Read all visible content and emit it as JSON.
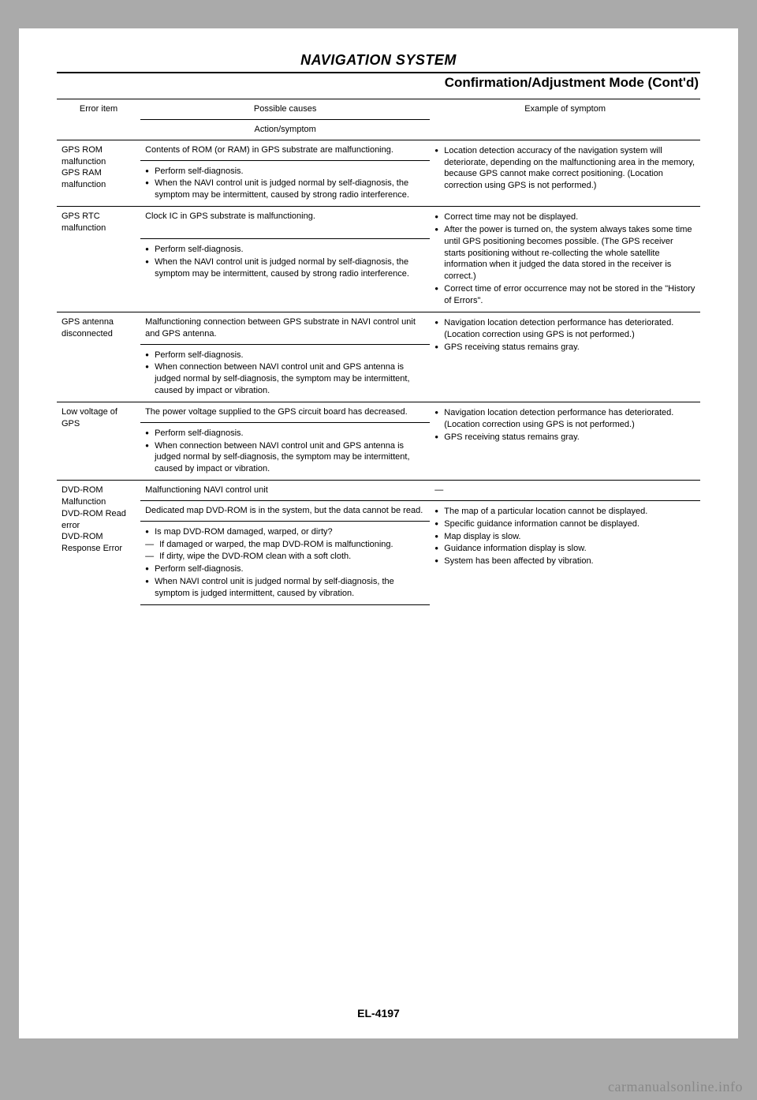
{
  "header": {
    "section_title": "NAVIGATION SYSTEM",
    "subtitle": "Confirmation/Adjustment Mode (Cont'd)"
  },
  "table": {
    "head": {
      "error_item": "Error item",
      "possible_causes": "Possible causes",
      "action_symptom": "Action/symptom",
      "example": "Example of symptom"
    },
    "rows": {
      "gps_rom": {
        "item": "GPS ROM malfunction\nGPS RAM malfunction",
        "cause": "Contents of ROM (or RAM) in GPS substrate are malfunctioning.",
        "action": [
          "Perform self-diagnosis.",
          "When the NAVI control unit is judged normal by self-diagnosis, the symptom may be intermittent, caused by strong radio interference."
        ],
        "symptom": [
          "Location detection accuracy of the navigation system will deteriorate, depending on the malfunctioning area in the memory, because GPS cannot make correct positioning. (Location correction using GPS is not performed.)"
        ]
      },
      "gps_rtc": {
        "item": "GPS RTC malfunction",
        "cause": "Clock IC in GPS substrate is malfunctioning.",
        "action": [
          "Perform self-diagnosis.",
          "When the NAVI control unit is judged normal by self-diagnosis, the symptom may be intermittent, caused by strong radio interference."
        ],
        "symptom": [
          "Correct time may not be displayed.",
          "After the power is turned on, the system always takes some time until GPS positioning becomes possible. (The GPS receiver starts positioning without re-collecting the whole satellite information when it judged the data stored in the receiver is correct.)",
          "Correct time of error occurrence may not be stored in the \"History of Errors\"."
        ]
      },
      "gps_ant": {
        "item": "GPS antenna disconnected",
        "cause": "Malfunctioning connection between GPS substrate in NAVI control unit and GPS antenna.",
        "action": [
          "Perform self-diagnosis.",
          "When connection between NAVI control unit and GPS antenna is judged normal by self-diagnosis, the symptom may be intermittent, caused by impact or vibration."
        ],
        "symptom": [
          "Navigation location detection performance has deteriorated. (Location correction using GPS is not performed.)",
          "GPS receiving status remains gray."
        ]
      },
      "low_v": {
        "item": "Low voltage of GPS",
        "cause": "The power voltage supplied to the GPS circuit board has decreased.",
        "action": [
          "Perform self-diagnosis.",
          "When connection between NAVI control unit and GPS antenna is judged normal by self-diagnosis, the symptom may be intermittent, caused by impact or vibration."
        ],
        "symptom": [
          "Navigation location detection performance has deteriorated. (Location correction using GPS is not performed.)",
          "GPS receiving status remains gray."
        ]
      },
      "dvd": {
        "item": "DVD-ROM Malfunction\nDVD-ROM Read error\nDVD-ROM Response Error",
        "cause1": "Malfunctioning NAVI control unit",
        "sym1": "—",
        "cause2": "Dedicated map DVD-ROM is in the system, but the data cannot be read.",
        "action2_a": "Is map DVD-ROM damaged, warped, or dirty?",
        "action2_dash": [
          "If damaged or warped, the map DVD-ROM is malfunctioning.",
          "If dirty, wipe the DVD-ROM clean with a soft cloth."
        ],
        "action2_b": [
          "Perform self-diagnosis.",
          "When NAVI control unit is judged normal by self-diagnosis, the symptom is judged intermittent, caused by vibration."
        ],
        "symptom2": [
          "The map of a particular location cannot be displayed.",
          "Specific guidance information cannot be displayed.",
          "Map display is slow.",
          "Guidance information display is slow.",
          "System has been affected by vibration."
        ]
      }
    }
  },
  "footer": {
    "pagenum": "EL-4197",
    "watermark": "carmanualsonline.info"
  }
}
